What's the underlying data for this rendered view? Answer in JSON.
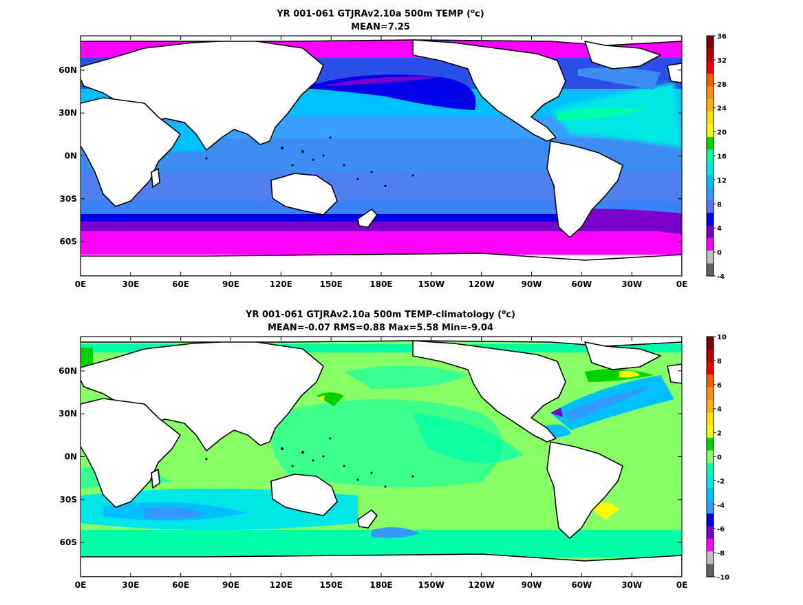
{
  "chart_data": [
    {
      "type": "heatmap",
      "title": "YR 001-061 GTJRAv2.10a 500m TEMP (",
      "title_unit": "o",
      "title_unit_suffix": "c)",
      "subtitle": "MEAN=7.25",
      "x_ticks": [
        "0E",
        "30E",
        "60E",
        "90E",
        "120E",
        "150E",
        "180E",
        "150W",
        "120W",
        "90W",
        "60W",
        "30W",
        "0E"
      ],
      "y_ticks": [
        "60N",
        "30N",
        "0N",
        "30S",
        "60S"
      ],
      "y_tick_lats": [
        60,
        30,
        0,
        -30,
        -60
      ],
      "ylim": [
        -84,
        84
      ],
      "xlim": [
        0,
        360
      ],
      "colorbar": {
        "ticks": [
          "36",
          "32",
          "28",
          "24",
          "20",
          "16",
          "12",
          "8",
          "4",
          "0",
          "-4"
        ],
        "values": [
          36,
          32,
          28,
          24,
          20,
          16,
          12,
          8,
          4,
          0,
          -4
        ],
        "colors": [
          "#800000",
          "#b00000",
          "#e60000",
          "#ff5a00",
          "#ff8c1a",
          "#ffb300",
          "#ffe000",
          "#ffff00",
          "#00d200",
          "#00ffaa",
          "#00e5e5",
          "#00bfff",
          "#3399ff",
          "#5577ee",
          "#0000e6",
          "#7700cc",
          "#ff00ff",
          "#bfbfbf",
          "#606060"
        ]
      }
    },
    {
      "type": "heatmap",
      "title": "YR 001-061 GTJRAv2.10a 500m TEMP-climatology (",
      "title_unit": "o",
      "title_unit_suffix": "c)",
      "subtitle": "MEAN=-0.07   RMS=0.88   Max=5.58   Min=-9.04",
      "x_ticks": [
        "0E",
        "30E",
        "60E",
        "90E",
        "120E",
        "150E",
        "180E",
        "150W",
        "120W",
        "90W",
        "60W",
        "30W",
        "0E"
      ],
      "y_ticks": [
        "60N",
        "30N",
        "0N",
        "30S",
        "60S"
      ],
      "y_tick_lats": [
        60,
        30,
        0,
        -30,
        -60
      ],
      "ylim": [
        -84,
        84
      ],
      "xlim": [
        0,
        360
      ],
      "colorbar": {
        "ticks": [
          "10",
          "8",
          "6",
          "4",
          "2",
          "0",
          "-2",
          "-4",
          "-6",
          "-8",
          "-10"
        ],
        "values": [
          10,
          8,
          6,
          4,
          2,
          0,
          -2,
          -4,
          -6,
          -8,
          -10
        ],
        "colors": [
          "#800000",
          "#b00000",
          "#e60000",
          "#ff5a00",
          "#ff8c1a",
          "#ffb300",
          "#ffe000",
          "#ffff00",
          "#00d200",
          "#88ff66",
          "#00ffaa",
          "#00e5e5",
          "#00bfff",
          "#3399ff",
          "#0000e6",
          "#7700cc",
          "#ff00ff",
          "#bfbfbf",
          "#606060"
        ]
      }
    }
  ]
}
